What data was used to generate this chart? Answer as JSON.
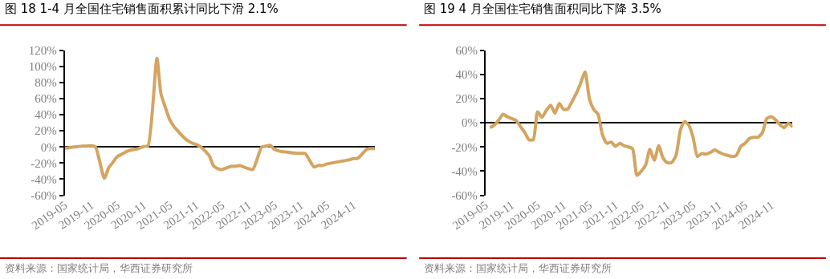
{
  "chart_data": [
    {
      "type": "line",
      "title": "图 18 1-4 月全国住宅销售面积累计同比下滑 2.1%",
      "x": [
        "2019-05",
        "2019-06",
        "2019-07",
        "2019-08",
        "2019-09",
        "2019-10",
        "2019-11",
        "2019-12",
        "2020-02",
        "2020-03",
        "2020-04",
        "2020-05",
        "2020-06",
        "2020-07",
        "2020-08",
        "2020-09",
        "2020-10",
        "2020-11",
        "2020-12",
        "2021-02",
        "2021-03",
        "2021-04",
        "2021-05",
        "2021-06",
        "2021-07",
        "2021-08",
        "2021-09",
        "2021-10",
        "2021-11",
        "2021-12",
        "2022-02",
        "2022-03",
        "2022-04",
        "2022-05",
        "2022-06",
        "2022-07",
        "2022-08",
        "2022-09",
        "2022-10",
        "2022-11",
        "2022-12",
        "2023-02",
        "2023-03",
        "2023-04",
        "2023-05",
        "2023-06",
        "2023-07",
        "2023-08",
        "2023-09",
        "2023-10",
        "2023-11",
        "2023-12",
        "2024-02",
        "2024-03",
        "2024-04",
        "2024-05",
        "2024-06",
        "2024-07",
        "2024-08",
        "2024-09",
        "2024-10",
        "2024-11",
        "2024-12",
        "2025-02",
        "2025-03",
        "2025-04"
      ],
      "series": [
        {
          "color": "#d4a460",
          "values": [
            -1.5,
            -1,
            0,
            0.5,
            1,
            1,
            1.5,
            0,
            -39,
            -26,
            -19,
            -12,
            -9,
            -6,
            -4,
            -3,
            -1.5,
            0.5,
            1.5,
            110,
            66,
            49,
            34,
            25,
            19,
            13,
            8,
            5,
            3,
            0.5,
            -11,
            -23,
            -27,
            -28,
            -26,
            -24,
            -24,
            -23,
            -25,
            -27,
            -28,
            0,
            1,
            2,
            -3,
            -5,
            -6,
            -6.5,
            -7.5,
            -8,
            -8,
            -8.2,
            -25,
            -23,
            -23,
            -21,
            -20,
            -19,
            -18,
            -17,
            -16,
            -14.5,
            -14.1,
            -3,
            -2,
            -2.1
          ]
        }
      ],
      "xlim": [
        "2019-05",
        "2025-04"
      ],
      "xticks": [
        "2019-05",
        "2019-11",
        "2020-05",
        "2020-11",
        "2021-05",
        "2021-11",
        "2022-05",
        "2022-11",
        "2023-05",
        "2023-11",
        "2024-05",
        "2024-11"
      ],
      "ylim": [
        -60,
        120
      ],
      "yticks": [
        {
          "value": -60,
          "label": "-60%"
        },
        {
          "value": -40,
          "label": "-40%"
        },
        {
          "value": -20,
          "label": "-20%"
        },
        {
          "value": 0,
          "label": "0%"
        },
        {
          "value": 20,
          "label": "20%"
        },
        {
          "value": 40,
          "label": "40%"
        },
        {
          "value": 60,
          "label": "60%"
        },
        {
          "value": 80,
          "label": "80%"
        },
        {
          "value": 100,
          "label": "100%"
        },
        {
          "value": 120,
          "label": "120%"
        }
      ],
      "annotations": [
        "资料来源：国家统计局，华西证券研究所"
      ]
    },
    {
      "type": "line",
      "title": "图 19 4 月全国住宅销售面积同比下降 3.5%",
      "x": [
        "2019-06",
        "2019-07",
        "2019-08",
        "2019-09",
        "2019-10",
        "2019-11",
        "2019-12",
        "2020-01",
        "2020-02",
        "2020-03",
        "2020-04",
        "2020-05",
        "2020-06",
        "2020-07",
        "2020-08",
        "2020-09",
        "2020-10",
        "2020-11",
        "2020-12",
        "2021-01",
        "2021-02",
        "2021-03",
        "2021-04",
        "2021-05",
        "2021-06",
        "2021-07",
        "2021-08",
        "2021-09",
        "2021-10",
        "2021-11",
        "2021-12",
        "2022-01",
        "2022-02",
        "2022-03",
        "2022-04",
        "2022-05",
        "2022-06",
        "2022-07",
        "2022-08",
        "2022-09",
        "2022-10",
        "2022-11",
        "2022-12",
        "2023-01",
        "2023-02",
        "2023-03",
        "2023-04",
        "2023-05",
        "2023-06",
        "2023-07",
        "2023-08",
        "2023-09",
        "2023-10",
        "2023-11",
        "2023-12",
        "2024-01",
        "2024-02",
        "2024-03",
        "2024-04",
        "2024-05",
        "2024-06",
        "2024-07",
        "2024-08",
        "2024-09",
        "2024-10",
        "2024-11",
        "2024-12",
        "2025-01",
        "2025-02",
        "2025-03",
        "2025-04"
      ],
      "series": [
        {
          "color": "#d4a460",
          "values": [
            -4,
            -2,
            2,
            7,
            5,
            3.5,
            2,
            -3,
            -8,
            -14,
            -14,
            9,
            4.5,
            10,
            14.5,
            8,
            16,
            11,
            11.5,
            18,
            25,
            33,
            42,
            20,
            11,
            7,
            -10,
            -17,
            -16,
            -19.5,
            -17,
            -19,
            -20,
            -21.5,
            -43.5,
            -40,
            -35,
            -22,
            -31,
            -19,
            -29,
            -33,
            -33,
            -27,
            -6,
            1,
            -2,
            -12,
            -28,
            -25.5,
            -26,
            -24.5,
            -22.5,
            -24.5,
            -26,
            -27,
            -28,
            -27,
            -19.5,
            -17,
            -13,
            -12,
            -12,
            -8,
            3.5,
            5,
            2.5,
            -1.5,
            -4,
            -0.5,
            -3.5
          ]
        }
      ],
      "xlim": [
        "2019-05",
        "2025-04"
      ],
      "xticks": [
        "2019-05",
        "2019-11",
        "2020-05",
        "2020-11",
        "2021-05",
        "2021-11",
        "2022-05",
        "2022-11",
        "2023-05",
        "2023-11",
        "2024-05",
        "2024-11"
      ],
      "ylim": [
        -60,
        60
      ],
      "yticks": [
        {
          "value": -60,
          "label": "-60%"
        },
        {
          "value": -40,
          "label": "-40%"
        },
        {
          "value": -20,
          "label": "-20%"
        },
        {
          "value": 0,
          "label": "0%"
        },
        {
          "value": 20,
          "label": "20%"
        },
        {
          "value": 40,
          "label": "40%"
        },
        {
          "value": 60,
          "label": "60%"
        }
      ],
      "annotations": [
        "资料来源：国家统计局，华西证券研究所"
      ]
    }
  ]
}
